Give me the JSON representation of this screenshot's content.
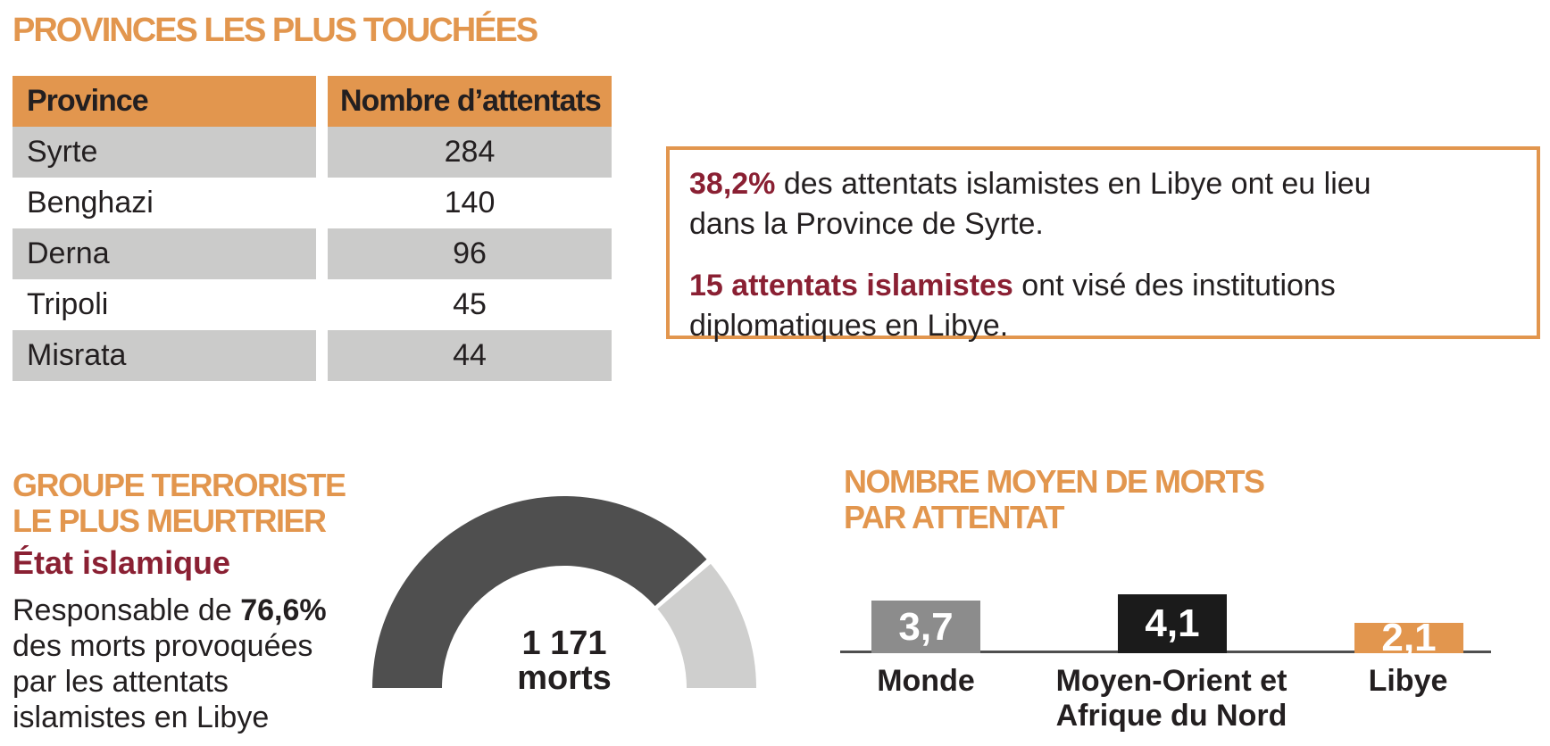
{
  "colors": {
    "orange": "#E2964E",
    "maroon": "#8A2033",
    "ink": "#231F20",
    "rowgray": "#CBCBCA",
    "axis": "#4F4F4F",
    "gauge_dark": "#4F4F4F",
    "gauge_light": "#CFCFCE",
    "bar_gray": "#8C8C8C",
    "bar_black": "#1B1B1B"
  },
  "provinces_section": {
    "title": "PROVINCES LES PLUS TOUCHÉES",
    "table": {
      "headers": [
        "Province",
        "Nombre d’attentats"
      ],
      "rows": [
        [
          "Syrte",
          "284"
        ],
        [
          "Benghazi",
          "140"
        ],
        [
          "Derna",
          "96"
        ],
        [
          "Tripoli",
          "45"
        ],
        [
          "Misrata",
          "44"
        ]
      ]
    }
  },
  "callout_box": {
    "p1_bold": "38,2%",
    "p1_line1_rest": " des attentats islamistes en Libye ont eu lieu",
    "p1_line2": "dans la Province de Syrte.",
    "p2_bold": "15 attentats islamistes",
    "p2_line1_rest": " ont visé des institutions",
    "p2_line2": "diplomatiques en Libye."
  },
  "group_section": {
    "title_line1": "GROUPE TERRORISTE",
    "title_line2": "LE PLUS MEURTRIER",
    "group_name": "État islamique",
    "desc_line1_prefix": "Responsable de ",
    "desc_line1_bold": "76,6%",
    "desc_line2": "des morts provoquées",
    "desc_line3": "par les attentats",
    "desc_line4": "islamistes en Libye"
  },
  "deaths_section": {
    "title_line1": "NOMBRE MOYEN DE MORTS",
    "title_line2": "PAR ATTENTAT"
  },
  "chart_data": [
    {
      "type": "gauge",
      "title": "GROUPE TERRORISTE LE PLUS MEURTRIER",
      "value_percent": 76.6,
      "remainder_percent": 23.4,
      "value_color": "#4F4F4F",
      "remainder_color": "#CFCFCE",
      "center_line1": "1 171",
      "center_line2": "morts",
      "annotation": "État islamique responsable de 76,6% des morts provoquées par les attentats islamistes en Libye"
    },
    {
      "type": "bar",
      "title": "NOMBRE MOYEN DE MORTS PAR ATTENTAT",
      "categories": [
        "Monde",
        "Moyen-Orient et Afrique du Nord",
        "Libye"
      ],
      "category_display": [
        [
          "Monde"
        ],
        [
          "Moyen-Orient et",
          "Afrique du Nord"
        ],
        [
          "Libye"
        ]
      ],
      "values": [
        3.7,
        4.1,
        2.1
      ],
      "value_labels": [
        "3,7",
        "4,1",
        "2,1"
      ],
      "colors": [
        "#8C8C8C",
        "#1B1B1B",
        "#E2964E"
      ],
      "ylim": [
        0,
        4.5
      ],
      "grid": false,
      "legend": false
    }
  ]
}
